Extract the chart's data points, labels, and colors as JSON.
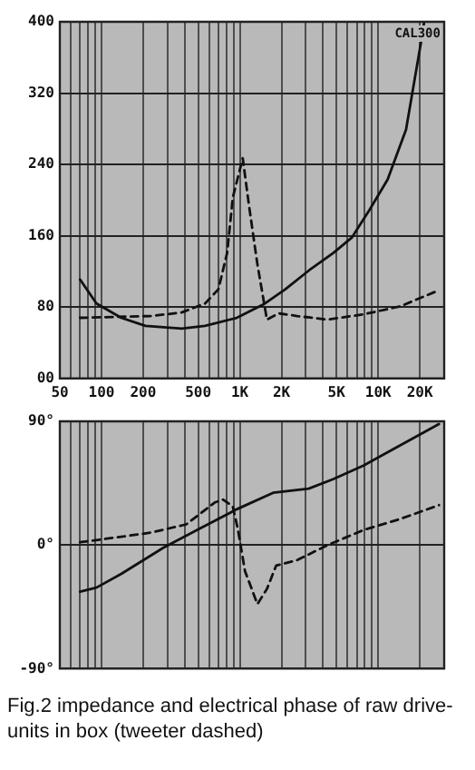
{
  "chart_data": [
    {
      "type": "line",
      "xlim": [
        50,
        30000
      ],
      "ylim": [
        0,
        400
      ],
      "log": "x",
      "grid": true,
      "legend": false,
      "marker": "none",
      "tick_labels": "xy",
      "xticks": [
        {
          "value": 50,
          "label": "50"
        },
        {
          "value": 60,
          "label": null
        },
        {
          "value": 70,
          "label": null
        },
        {
          "value": 80,
          "label": null
        },
        {
          "value": 90,
          "label": null
        },
        {
          "value": 100,
          "label": "100"
        },
        {
          "value": 200,
          "label": "200"
        },
        {
          "value": 300,
          "label": null
        },
        {
          "value": 400,
          "label": null
        },
        {
          "value": 500,
          "label": "500"
        },
        {
          "value": 600,
          "label": null
        },
        {
          "value": 700,
          "label": null
        },
        {
          "value": 800,
          "label": null
        },
        {
          "value": 900,
          "label": null
        },
        {
          "value": 1000,
          "label": "1K"
        },
        {
          "value": 2000,
          "label": "2K"
        },
        {
          "value": 3000,
          "label": null
        },
        {
          "value": 4000,
          "label": null
        },
        {
          "value": 5000,
          "label": "5K"
        },
        {
          "value": 6000,
          "label": null
        },
        {
          "value": 7000,
          "label": null
        },
        {
          "value": 8000,
          "label": null
        },
        {
          "value": 9000,
          "label": null
        },
        {
          "value": 10000,
          "label": "10K"
        },
        {
          "value": 20000,
          "label": "20K"
        }
      ],
      "yticks": [
        {
          "value": 0,
          "label": "00"
        },
        80,
        160,
        240,
        320,
        400
      ],
      "annotations": [
        "CAL300"
      ],
      "series": [
        {
          "color": "#111111",
          "line_style": "solid",
          "x": [
            70,
            92,
            139,
            208,
            380,
            560,
            950,
            1480,
            2130,
            3150,
            4760,
            6450,
            8650,
            11700,
            15900,
            20600,
            21500
          ],
          "values": [
            111,
            84,
            68,
            59,
            56,
            59,
            68,
            83,
            100,
            121,
            141,
            158,
            189,
            223,
            279,
            381,
            400
          ]
        },
        {
          "color": "#111111",
          "line_style": "dashed",
          "x": [
            70,
            228,
            380,
            560,
            700,
            810,
            890,
            1050,
            1160,
            1340,
            1570,
            1910,
            2600,
            4320,
            7890,
            14500,
            27500
          ],
          "values": [
            68,
            70,
            74,
            84,
            100,
            141,
            203,
            247,
            196,
            128,
            66,
            73,
            70,
            66,
            72,
            81,
            99
          ]
        }
      ]
    },
    {
      "type": "line",
      "xlim": [
        50,
        30000
      ],
      "ylim": [
        -90,
        90
      ],
      "log": "x",
      "grid": true,
      "legend": false,
      "marker": "none",
      "tick_labels": "y",
      "xticks": [
        50,
        60,
        70,
        80,
        90,
        100,
        200,
        300,
        400,
        500,
        600,
        700,
        800,
        900,
        1000,
        2000,
        3000,
        4000,
        5000,
        6000,
        7000,
        8000,
        9000,
        10000,
        20000
      ],
      "yticks": [
        {
          "value": -90,
          "label": "-90°"
        },
        {
          "value": 0,
          "label": "0°"
        },
        {
          "value": 90,
          "label": "90°"
        }
      ],
      "annotations": [
        "Fig.2 impedance and electrical phase of raw drive-units in box (tweeter dashed)"
      ],
      "series": [
        {
          "color": "#111111",
          "line_style": "solid",
          "x": [
            70,
            92,
            139,
            280,
            515,
            950,
            1740,
            3150,
            4760,
            7890,
            13000,
            27500
          ],
          "values": [
            -34,
            -31,
            -21,
            -2,
            12,
            26,
            38,
            41,
            48,
            58,
            70,
            88
          ]
        },
        {
          "color": "#111111",
          "line_style": "dashed",
          "x": [
            70,
            139,
            228,
            410,
            660,
            760,
            890,
            970,
            1090,
            1340,
            1570,
            1830,
            2600,
            4320,
            7890,
            14500,
            27500
          ],
          "values": [
            2,
            6,
            9,
            15,
            31,
            33,
            28,
            11,
            -19,
            -43,
            -32,
            -15,
            -11,
            0,
            11,
            19,
            29
          ]
        }
      ]
    }
  ]
}
